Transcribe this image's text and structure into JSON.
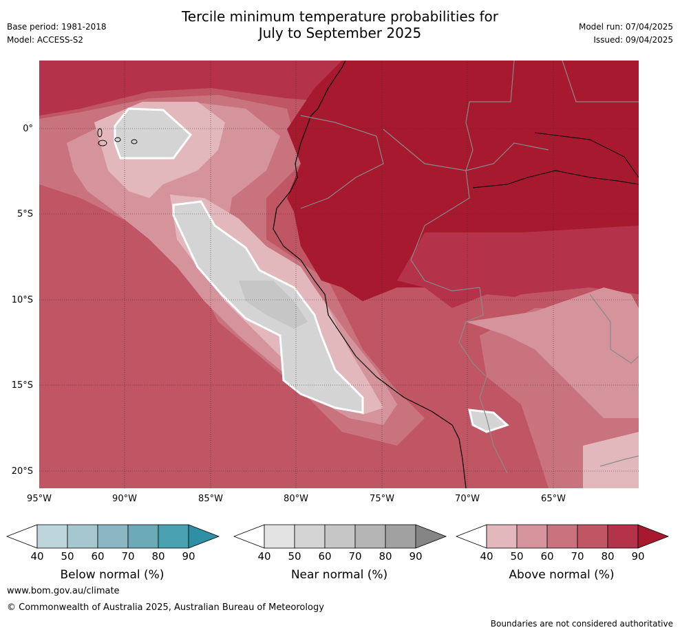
{
  "header": {
    "title_line1": "Tercile minimum temperature probabilities for",
    "title_line2": "July to September 2025",
    "base_period": "Base period: 1981-2018",
    "model": "Model: ACCESS-S2",
    "model_run": "Model run: 07/04/2025",
    "issued": "Issued: 09/04/2025"
  },
  "axes": {
    "lat_labels": [
      "0°",
      "5°S",
      "10°S",
      "15°S",
      "20°S"
    ],
    "lon_labels": [
      "95°W",
      "90°W",
      "85°W",
      "80°W",
      "75°W",
      "70°W",
      "65°W"
    ]
  },
  "colorbars": [
    {
      "label": "Below normal (%)",
      "ticks": [
        "40",
        "50",
        "60",
        "70",
        "80",
        "90"
      ],
      "colors": [
        "#ffffff",
        "#bdd6dc",
        "#a6c7cf",
        "#8ab7c3",
        "#6baab6",
        "#4aa1b2",
        "#2f8fa4"
      ]
    },
    {
      "label": "Near normal (%)",
      "ticks": [
        "40",
        "50",
        "60",
        "70",
        "80",
        "90"
      ],
      "colors": [
        "#ffffff",
        "#e3e3e3",
        "#d4d4d4",
        "#c6c6c6",
        "#b5b5b5",
        "#a1a1a1",
        "#858585"
      ]
    },
    {
      "label": "Above normal (%)",
      "ticks": [
        "40",
        "50",
        "60",
        "70",
        "80",
        "90"
      ],
      "colors": [
        "#ffffff",
        "#e2b8bd",
        "#d5939b",
        "#c9737e",
        "#c05563",
        "#b4334a",
        "#a6192e"
      ]
    }
  ],
  "footer": {
    "website": "www.bom.gov.au/climate",
    "copyright": "© Commonwealth of Australia 2025, Australian Bureau of Meteorology",
    "disclaimer": "Boundaries are not considered authoritative"
  }
}
